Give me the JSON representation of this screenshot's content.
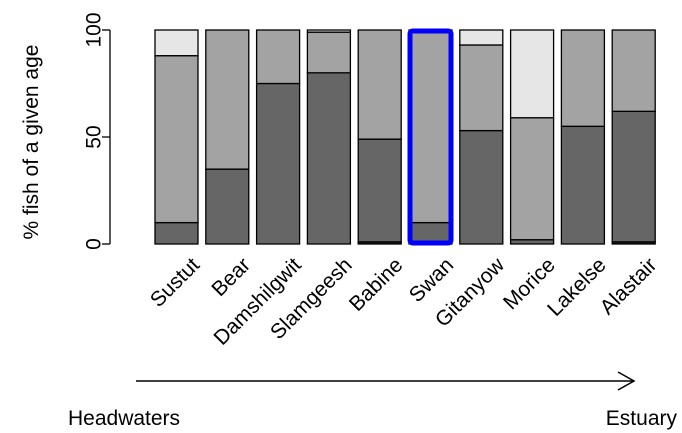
{
  "chart_data": {
    "type": "bar",
    "stacked": true,
    "ylabel": "% fish of a given age",
    "ylim": [
      0,
      100
    ],
    "yticks": [
      0,
      50,
      100
    ],
    "categories": [
      "Sustut",
      "Bear",
      "Damshilgwit",
      "Slamgeesh",
      "Babine",
      "Swan",
      "Gitanyow",
      "Morice",
      "Lakelse",
      "Alastair"
    ],
    "series": [
      {
        "color": "#1a1a1a",
        "values": [
          0,
          0,
          0,
          0,
          1,
          0,
          0,
          0,
          0,
          1
        ]
      },
      {
        "color": "#666666",
        "values": [
          10,
          35,
          75,
          80,
          48,
          10,
          53,
          2,
          55,
          61
        ]
      },
      {
        "color": "#a3a3a3",
        "values": [
          78,
          65,
          25,
          19,
          51,
          90,
          40,
          57,
          45,
          38
        ]
      },
      {
        "color": "#e6e6e6",
        "values": [
          12,
          0,
          0,
          1,
          0,
          0,
          7,
          41,
          0,
          0
        ]
      }
    ],
    "highlight": {
      "category": "Swan",
      "color": "#0000ff"
    },
    "arrow": {
      "start_label": "Headwaters",
      "end_label": "Estuary"
    }
  }
}
